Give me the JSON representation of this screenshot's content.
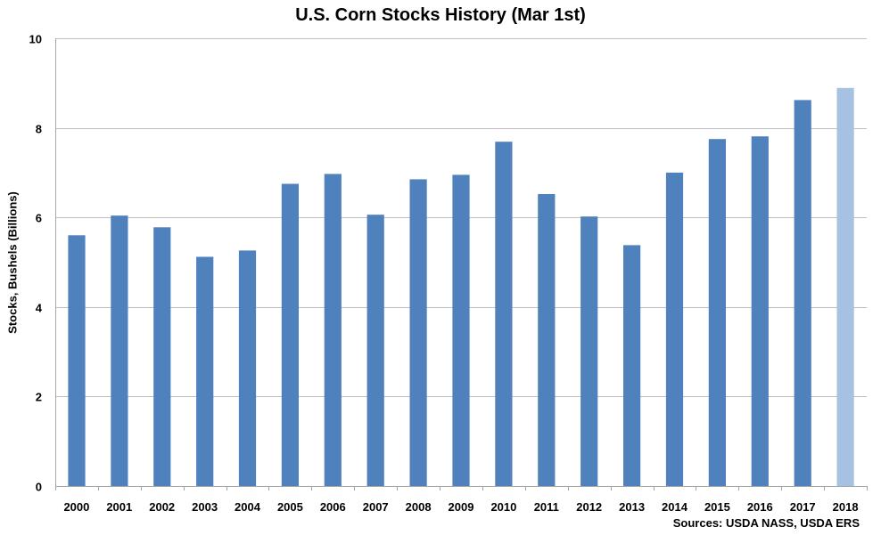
{
  "chart_data": {
    "type": "bar",
    "title": "U.S. Corn Stocks History (Mar 1st)",
    "xlabel": "",
    "ylabel": "Stocks, Bushels (Billions)",
    "source": "Sources: USDA NASS, USDA ERS",
    "categories": [
      "2000",
      "2001",
      "2002",
      "2003",
      "2004",
      "2005",
      "2006",
      "2007",
      "2008",
      "2009",
      "2010",
      "2011",
      "2012",
      "2013",
      "2014",
      "2015",
      "2016",
      "2017",
      "2018"
    ],
    "values": [
      5.6,
      6.04,
      5.78,
      5.12,
      5.26,
      6.75,
      6.97,
      6.06,
      6.85,
      6.95,
      7.69,
      6.52,
      6.02,
      5.38,
      7.0,
      7.75,
      7.81,
      8.62,
      8.89
    ],
    "highlighted": [
      "2018"
    ],
    "ylim": [
      0,
      10
    ],
    "yticks": [
      0,
      2,
      4,
      6,
      8,
      10
    ],
    "grid": true,
    "legend": "none",
    "colors": {
      "bar": "#4f81bd",
      "highlight": "#a6c1e2",
      "grid": "#c0c0c0",
      "axis": "#a6a6a6"
    }
  }
}
